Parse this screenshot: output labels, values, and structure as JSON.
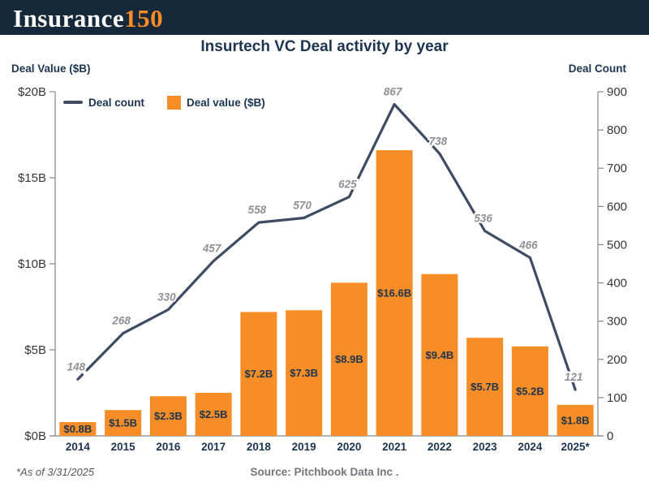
{
  "header": {
    "logo_text": "Insurance",
    "logo_accent": "150"
  },
  "title": "Insurtech VC Deal activity by year",
  "axis_titles": {
    "left": "Deal Value ($B)",
    "right": "Deal Count"
  },
  "legend": [
    {
      "label": "Deal count",
      "swatch": "line-swatch"
    },
    {
      "label": "Deal value ($B)",
      "swatch": "box-swatch"
    }
  ],
  "footnote": "*As of 3/31/2025",
  "source": "Source: Pitchbook Data Inc .",
  "colors": {
    "header_navy": "#16293a",
    "bar_orange": "#f78d26",
    "line_navy": "#3e4c63",
    "text_navy": "#1c3450",
    "line_label_gray": "#8d9096",
    "tick_label": "#35353d",
    "axis_gray": "#82878e"
  },
  "chart_data": {
    "type": "bar+line",
    "title": "Insurtech VC Deal activity by year",
    "categories": [
      "2014",
      "2015",
      "2016",
      "2017",
      "2018",
      "2019",
      "2020",
      "2021",
      "2022",
      "2023",
      "2024",
      "2025*"
    ],
    "series": [
      {
        "name": "Deal value ($B)",
        "type": "bar",
        "axis": "left",
        "values": [
          0.8,
          1.5,
          2.3,
          2.5,
          7.2,
          7.3,
          8.9,
          16.6,
          9.4,
          5.7,
          5.2,
          1.8
        ],
        "labels": [
          "$0.8B",
          "$1.5B",
          "$2.3B",
          "$2.5B",
          "$7.2B",
          "$7.3B",
          "$8.9B",
          "$16.6B",
          "$9.4B",
          "$5.7B",
          "$5.2B",
          "$1.8B"
        ]
      },
      {
        "name": "Deal count",
        "type": "line",
        "axis": "right",
        "values": [
          148,
          268,
          330,
          457,
          558,
          570,
          625,
          867,
          738,
          536,
          466,
          121
        ],
        "labels": [
          "148",
          "268",
          "330",
          "457",
          "558",
          "570",
          "625",
          "867",
          "738",
          "536",
          "466",
          "121"
        ]
      }
    ],
    "left_axis": {
      "label": "Deal Value ($B)",
      "min": 0,
      "max": 20,
      "ticks": [
        "$0B",
        "$5B",
        "$10B",
        "$15B",
        "$20B"
      ]
    },
    "right_axis": {
      "label": "Deal Count",
      "min": 0,
      "max": 900,
      "ticks": [
        "0",
        "100",
        "200",
        "300",
        "400",
        "500",
        "600",
        "700",
        "800",
        "900"
      ]
    },
    "grid": false,
    "legend_position": "top-left"
  }
}
